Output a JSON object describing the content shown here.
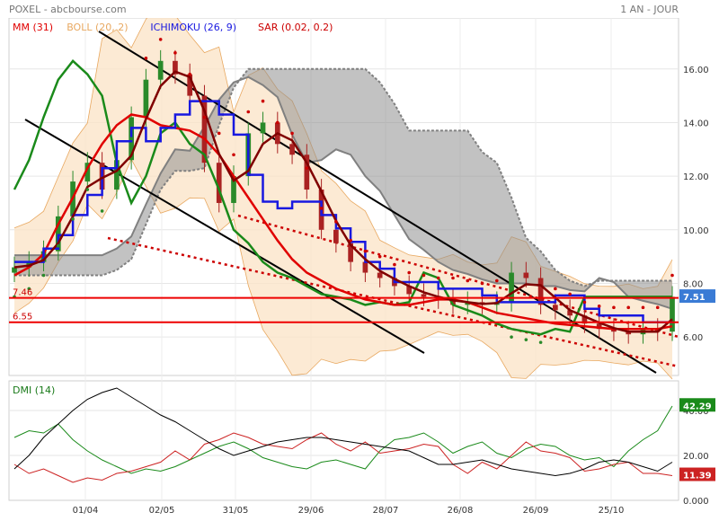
{
  "header": {
    "title": "POXEL - abcbourse.com",
    "period": "1 AN - JOUR"
  },
  "legend": [
    {
      "label": "MM (31)",
      "color": "#e00000"
    },
    {
      "label": "BOLL (20, 2)",
      "color": "#e8a860"
    },
    {
      "label": "ICHIMOKU (26, 9)",
      "color": "#1818e0"
    },
    {
      "label": "SAR (0.02, 0.2)",
      "color": "#cc0000"
    }
  ],
  "price_axis": {
    "ticks": [
      "16.00",
      "14.00",
      "12.00",
      "10.00",
      "8.00",
      "6.00"
    ]
  },
  "levels": [
    {
      "label": "7.46",
      "value": 7.46
    },
    {
      "label": "6.55",
      "value": 6.55
    }
  ],
  "last_price": "7.51",
  "dmi": {
    "label": "DMI (14)",
    "ticks": [
      "40.00",
      "20.00",
      "0.000"
    ],
    "plus_badge": "42.29",
    "minus_badge": "11.39"
  },
  "x_labels": [
    "01/04",
    "02/05",
    "31/05",
    "29/06",
    "28/07",
    "26/08",
    "26/09",
    "25/10"
  ],
  "colors": {
    "candle_up": "#2a8a2a",
    "candle_down": "#aa2222",
    "sma": "#e00000",
    "kijun": "#1818e0",
    "tenkan": "#800000",
    "chikou": "#1a8a1a",
    "cloud": "#909090",
    "boll_fill": "#fbe3c6",
    "boll_line": "#e8a860",
    "sar": "#cc0000",
    "trend": "#000000",
    "badge_price": "#3a7bd5",
    "badge_plus": "#1a8a1a",
    "badge_minus": "#cc2222"
  },
  "chart_data": {
    "type": "line",
    "ylim": [
      5,
      17.5
    ],
    "close": [
      8.6,
      8.8,
      9.2,
      10.5,
      11.8,
      12.5,
      11.5,
      12.6,
      14.2,
      15.6,
      16.3,
      15.8,
      15.0,
      12.5,
      11.0,
      12.0,
      13.6,
      14.0,
      13.2,
      12.8,
      11.5,
      10.0,
      9.5,
      8.8,
      8.4,
      8.2,
      7.9,
      7.6,
      7.5,
      7.4,
      7.2,
      7.3,
      7.2,
      7.3,
      8.4,
      8.2,
      7.2,
      7.0,
      6.8,
      6.5,
      6.3,
      6.2,
      6.1,
      6.3,
      6.2,
      7.5
    ],
    "series": [
      {
        "name": "MM (31)",
        "values": [
          8.3,
          8.6,
          9.1,
          10.2,
          11.2,
          12.3,
          13.2,
          13.9,
          14.3,
          14.2,
          13.9,
          13.8,
          13.7,
          13.4,
          12.8,
          12.0,
          11.2,
          10.4,
          9.6,
          8.9,
          8.4,
          8.1,
          7.8,
          7.6,
          7.4,
          7.3,
          7.2,
          7.2,
          7.3,
          7.4,
          7.4,
          7.3,
          7.1,
          6.9,
          6.8,
          6.7,
          6.6,
          6.5,
          6.45,
          6.4,
          6.35,
          6.3,
          6.3,
          6.3,
          6.3,
          6.4
        ]
      }
    ]
  }
}
